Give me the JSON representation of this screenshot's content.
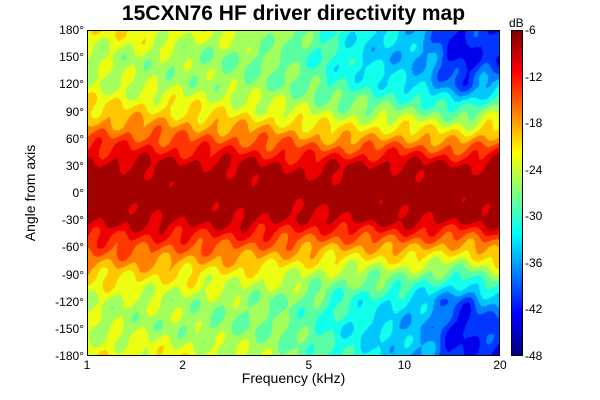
{
  "chart_data": {
    "type": "heatmap",
    "title": "15CXN76 HF driver directivity map",
    "xlabel": "Frequency (kHz)",
    "ylabel": "Angle from axis",
    "xscale": "log",
    "xlim": [
      1,
      20
    ],
    "ylim": [
      -180,
      180
    ],
    "xticks": [
      "1",
      "2",
      "5",
      "10",
      "20"
    ],
    "xtick_values": [
      1,
      2,
      5,
      10,
      20
    ],
    "yticks": [
      "180°",
      "150°",
      "120°",
      "90°",
      "60°",
      "30°",
      "0°",
      "-30°",
      "-60°",
      "-90°",
      "-120°",
      "-150°",
      "-180°"
    ],
    "ytick_values": [
      180,
      150,
      120,
      90,
      60,
      30,
      0,
      -30,
      -60,
      -90,
      -120,
      -150,
      -180
    ],
    "colorbar": {
      "label": "dB",
      "range": [
        -48,
        -6
      ],
      "step": 3,
      "ticks": [
        "-6",
        "-12",
        "-18",
        "-24",
        "-30",
        "-36",
        "-42",
        "-48"
      ],
      "tick_values": [
        -6,
        -12,
        -18,
        -24,
        -30,
        -36,
        -42,
        -48
      ],
      "colormap": "jet"
    },
    "frequencies_khz": [
      1,
      1.5,
      2,
      3,
      4,
      5,
      6,
      8,
      10,
      12,
      14,
      16,
      18,
      20
    ],
    "angles_deg": [
      180,
      150,
      120,
      90,
      60,
      30,
      0,
      -30,
      -60,
      -90,
      -120,
      -150,
      -180
    ],
    "values_db": [
      [
        -22,
        -22,
        -23,
        -24,
        -26,
        -28,
        -30,
        -33,
        -34,
        -36,
        -42,
        -42,
        -40,
        -42
      ],
      [
        -25,
        -25,
        -26,
        -27,
        -27,
        -29,
        -31,
        -34,
        -35,
        -36,
        -42,
        -44,
        -40,
        -42
      ],
      [
        -24,
        -25,
        -25,
        -26,
        -27,
        -28,
        -30,
        -31,
        -33,
        -35,
        -38,
        -40,
        -36,
        -34
      ],
      [
        -20,
        -20,
        -21,
        -22,
        -23,
        -24,
        -25,
        -26,
        -26,
        -27,
        -28,
        -29,
        -26,
        -25
      ],
      [
        -14,
        -14,
        -15,
        -15,
        -16,
        -17,
        -18,
        -18,
        -17,
        -18,
        -19,
        -19,
        -17,
        -16
      ],
      [
        -8,
        -8,
        -8,
        -8,
        -9,
        -10,
        -9,
        -8,
        -8,
        -8,
        -8,
        -9,
        -8,
        -7
      ],
      [
        -6,
        -6,
        -6,
        -6,
        -6,
        -6,
        -6,
        -6,
        -6,
        -6,
        -6,
        -6,
        -6,
        -6
      ],
      [
        -8,
        -8,
        -8,
        -8,
        -9,
        -10,
        -9,
        -8,
        -8,
        -8,
        -8,
        -9,
        -8,
        -7
      ],
      [
        -14,
        -14,
        -15,
        -15,
        -16,
        -17,
        -18,
        -18,
        -17,
        -18,
        -19,
        -19,
        -17,
        -16
      ],
      [
        -20,
        -20,
        -21,
        -22,
        -23,
        -24,
        -25,
        -26,
        -26,
        -27,
        -28,
        -29,
        -26,
        -25
      ],
      [
        -24,
        -25,
        -25,
        -26,
        -27,
        -28,
        -30,
        -31,
        -33,
        -35,
        -38,
        -40,
        -36,
        -34
      ],
      [
        -25,
        -25,
        -26,
        -27,
        -27,
        -29,
        -31,
        -34,
        -35,
        -36,
        -42,
        -44,
        -40,
        -42
      ],
      [
        -22,
        -22,
        -23,
        -24,
        -26,
        -28,
        -30,
        -33,
        -34,
        -36,
        -42,
        -42,
        -40,
        -42
      ]
    ]
  }
}
